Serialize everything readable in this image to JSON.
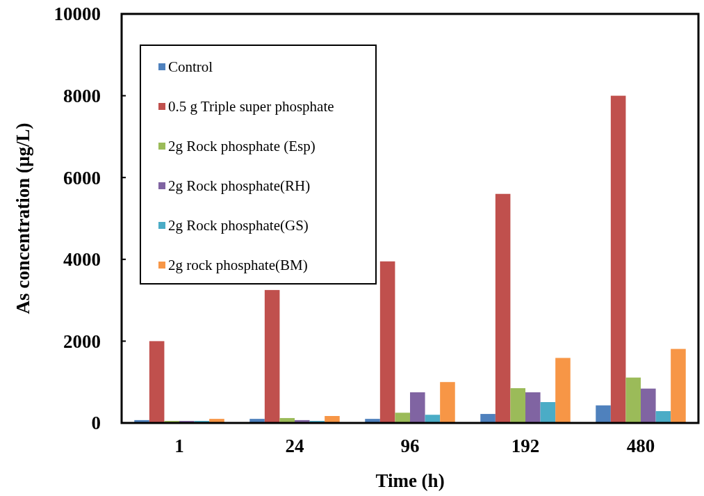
{
  "chart_data": {
    "type": "bar",
    "xlabel": "Time (h)",
    "ylabel": "As concentration (µg/L)",
    "categories": [
      "1",
      "24",
      "96",
      "192",
      "480"
    ],
    "series": [
      {
        "name": "Control",
        "color": "#4f81bd",
        "values": [
          70,
          100,
          100,
          220,
          430
        ]
      },
      {
        "name": "0.5 g Triple super phosphate",
        "color": "#c0504d",
        "values": [
          2000,
          3250,
          3950,
          5600,
          8000
        ]
      },
      {
        "name": "2g Rock phosphate (Esp)",
        "color": "#9bbb59",
        "values": [
          50,
          120,
          250,
          850,
          1110
        ]
      },
      {
        "name": "2g Rock phosphate(RH)",
        "color": "#8064a2",
        "values": [
          50,
          70,
          750,
          750,
          840
        ]
      },
      {
        "name": "2g Rock phosphate(GS)",
        "color": "#4bacc6",
        "values": [
          50,
          50,
          200,
          510,
          290
        ]
      },
      {
        "name": "2g rock phosphate(BM)",
        "color": "#f79646",
        "values": [
          100,
          170,
          1000,
          1590,
          1810
        ]
      }
    ],
    "ylim": [
      0,
      10000
    ],
    "yticks": [
      0,
      2000,
      4000,
      6000,
      8000,
      10000
    ],
    "legend": "top left"
  }
}
